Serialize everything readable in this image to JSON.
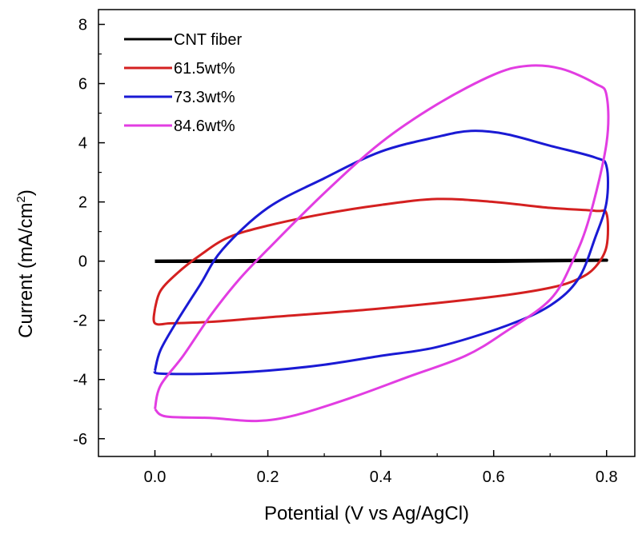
{
  "chart_data": {
    "type": "line",
    "xlabel": "Potential (V vs Ag/AgCl)",
    "ylabel_main": "Current (mA/cm",
    "ylabel_sup": "2",
    "ylabel_end": ")",
    "xlim": [
      -0.1,
      0.85
    ],
    "ylim": [
      -6.6,
      8.5
    ],
    "xticks": [
      0.0,
      0.2,
      0.4,
      0.6,
      0.8
    ],
    "xtick_labels": [
      "0.0",
      "0.2",
      "0.4",
      "0.6",
      "0.8"
    ],
    "yticks": [
      -6,
      -4,
      -2,
      0,
      2,
      4,
      6,
      8
    ],
    "ytick_labels": [
      "-6",
      "-4",
      "-2",
      "0",
      "2",
      "4",
      "6",
      "8"
    ],
    "grid": false,
    "legend_position": "top-left",
    "series": [
      {
        "name": "CNT fiber",
        "color": "#000000",
        "points": [
          [
            0.0,
            0.0
          ],
          [
            0.2,
            0.02
          ],
          [
            0.4,
            0.02
          ],
          [
            0.6,
            0.02
          ],
          [
            0.8,
            0.03
          ],
          [
            0.6,
            -0.01
          ],
          [
            0.4,
            -0.01
          ],
          [
            0.2,
            -0.01
          ],
          [
            0.0,
            -0.01
          ]
        ]
      },
      {
        "name": "61.5wt%",
        "color": "#d42020",
        "points": [
          [
            0.0,
            -1.6
          ],
          [
            0.01,
            -1.0
          ],
          [
            0.04,
            -0.4
          ],
          [
            0.08,
            0.2
          ],
          [
            0.13,
            0.8
          ],
          [
            0.2,
            1.2
          ],
          [
            0.3,
            1.6
          ],
          [
            0.4,
            1.9
          ],
          [
            0.5,
            2.1
          ],
          [
            0.6,
            2.0
          ],
          [
            0.7,
            1.8
          ],
          [
            0.78,
            1.7
          ],
          [
            0.8,
            1.6
          ],
          [
            0.8,
            0.5
          ],
          [
            0.78,
            -0.2
          ],
          [
            0.75,
            -0.6
          ],
          [
            0.7,
            -0.9
          ],
          [
            0.6,
            -1.2
          ],
          [
            0.4,
            -1.6
          ],
          [
            0.2,
            -1.9
          ],
          [
            0.1,
            -2.05
          ],
          [
            0.03,
            -2.1
          ],
          [
            0.0,
            -2.1
          ],
          [
            0.0,
            -1.6
          ]
        ]
      },
      {
        "name": "73.3wt%",
        "color": "#1a1ad4",
        "points": [
          [
            0.0,
            -3.7
          ],
          [
            0.01,
            -3.0
          ],
          [
            0.04,
            -2.0
          ],
          [
            0.08,
            -0.8
          ],
          [
            0.12,
            0.4
          ],
          [
            0.2,
            1.8
          ],
          [
            0.3,
            2.8
          ],
          [
            0.4,
            3.7
          ],
          [
            0.5,
            4.2
          ],
          [
            0.56,
            4.4
          ],
          [
            0.62,
            4.3
          ],
          [
            0.7,
            3.9
          ],
          [
            0.78,
            3.5
          ],
          [
            0.8,
            3.2
          ],
          [
            0.8,
            2.0
          ],
          [
            0.78,
            0.8
          ],
          [
            0.75,
            -0.6
          ],
          [
            0.7,
            -1.5
          ],
          [
            0.62,
            -2.2
          ],
          [
            0.5,
            -2.9
          ],
          [
            0.4,
            -3.2
          ],
          [
            0.3,
            -3.5
          ],
          [
            0.2,
            -3.7
          ],
          [
            0.1,
            -3.8
          ],
          [
            0.01,
            -3.8
          ],
          [
            0.0,
            -3.7
          ]
        ]
      },
      {
        "name": "84.6wt%",
        "color": "#e23de2",
        "points": [
          [
            0.0,
            -5.0
          ],
          [
            0.01,
            -4.2
          ],
          [
            0.05,
            -3.2
          ],
          [
            0.1,
            -1.8
          ],
          [
            0.15,
            -0.6
          ],
          [
            0.2,
            0.4
          ],
          [
            0.3,
            2.3
          ],
          [
            0.4,
            4.0
          ],
          [
            0.5,
            5.3
          ],
          [
            0.6,
            6.3
          ],
          [
            0.66,
            6.6
          ],
          [
            0.72,
            6.5
          ],
          [
            0.78,
            6.0
          ],
          [
            0.8,
            5.6
          ],
          [
            0.8,
            4.0
          ],
          [
            0.77,
            1.5
          ],
          [
            0.74,
            0.0
          ],
          [
            0.7,
            -1.3
          ],
          [
            0.62,
            -2.4
          ],
          [
            0.55,
            -3.2
          ],
          [
            0.45,
            -3.9
          ],
          [
            0.35,
            -4.6
          ],
          [
            0.25,
            -5.2
          ],
          [
            0.18,
            -5.4
          ],
          [
            0.1,
            -5.3
          ],
          [
            0.02,
            -5.25
          ],
          [
            0.0,
            -5.0
          ]
        ]
      }
    ]
  }
}
